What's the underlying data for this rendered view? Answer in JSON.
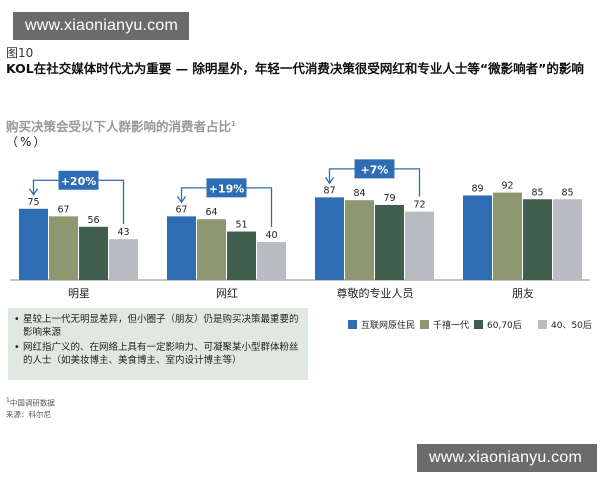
{
  "watermark": {
    "text": "www.xiaonianyu.com"
  },
  "figure_label": "图10",
  "headline": "KOL在社交媒体时代尤为重要 — 除明星外，年轻一代消费决策很受网红和专业人士等“微影响者”的影响",
  "chart_title": "购买决策会受以下人群影响的消费者占比",
  "chart_title_sup": "1",
  "unit": "（%）",
  "notes": [
    "星较上一代无明显差异，但小圈子（朋友）仍是购买决策最重要的影响来源",
    "网红指广义的、在网络上具有一定影响力、可凝聚某小型群体粉丝的人士（如美妆博主、美食博主、室内设计博主等）"
  ],
  "footnote": {
    "sup": "1",
    "text": "中国调研数据"
  },
  "source": "来源：科尔尼",
  "chart_data": {
    "type": "bar",
    "categories": [
      "明星",
      "网红",
      "尊敬的专业人员",
      "朋友"
    ],
    "series": [
      {
        "name": "互联网原住民",
        "values": [
          75,
          67,
          87,
          89
        ],
        "color": "#2e6db4"
      },
      {
        "name": "千禧一代",
        "values": [
          67,
          64,
          84,
          92
        ],
        "color": "#8d9870"
      },
      {
        "name": "60,70后",
        "values": [
          56,
          51,
          79,
          85
        ],
        "color": "#3f5e4e"
      },
      {
        "name": "40、50后",
        "values": [
          43,
          40,
          72,
          85
        ],
        "color": "#b9bcc2"
      }
    ],
    "ylim": [
      0,
      100
    ],
    "annotations": [
      {
        "category": "明星",
        "label": "+20%"
      },
      {
        "category": "网红",
        "label": "+19%"
      },
      {
        "category": "尊敬的专业人员",
        "label": "+7%"
      }
    ],
    "annotation_color": "#2e6db4",
    "grid": false,
    "legend_position": "bottom-right"
  }
}
